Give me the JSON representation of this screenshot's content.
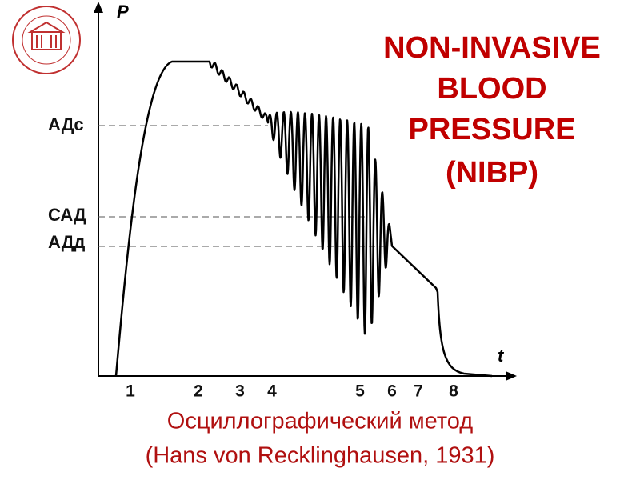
{
  "title": {
    "lines": [
      "NON-INVASIVE",
      "BLOOD",
      "PRESSURE",
      "(NIBP)"
    ]
  },
  "diagram": {
    "y_axis_label": "P",
    "x_axis_label": "t",
    "levels": [
      "АДс",
      "САД",
      "АДд"
    ],
    "points": [
      "1",
      "2",
      "3",
      "4",
      "5",
      "6",
      "7",
      "8"
    ]
  },
  "caption": {
    "lines": [
      "Осциллографический метод",
      "(Hans von Recklinghausen, 1931)"
    ]
  }
}
